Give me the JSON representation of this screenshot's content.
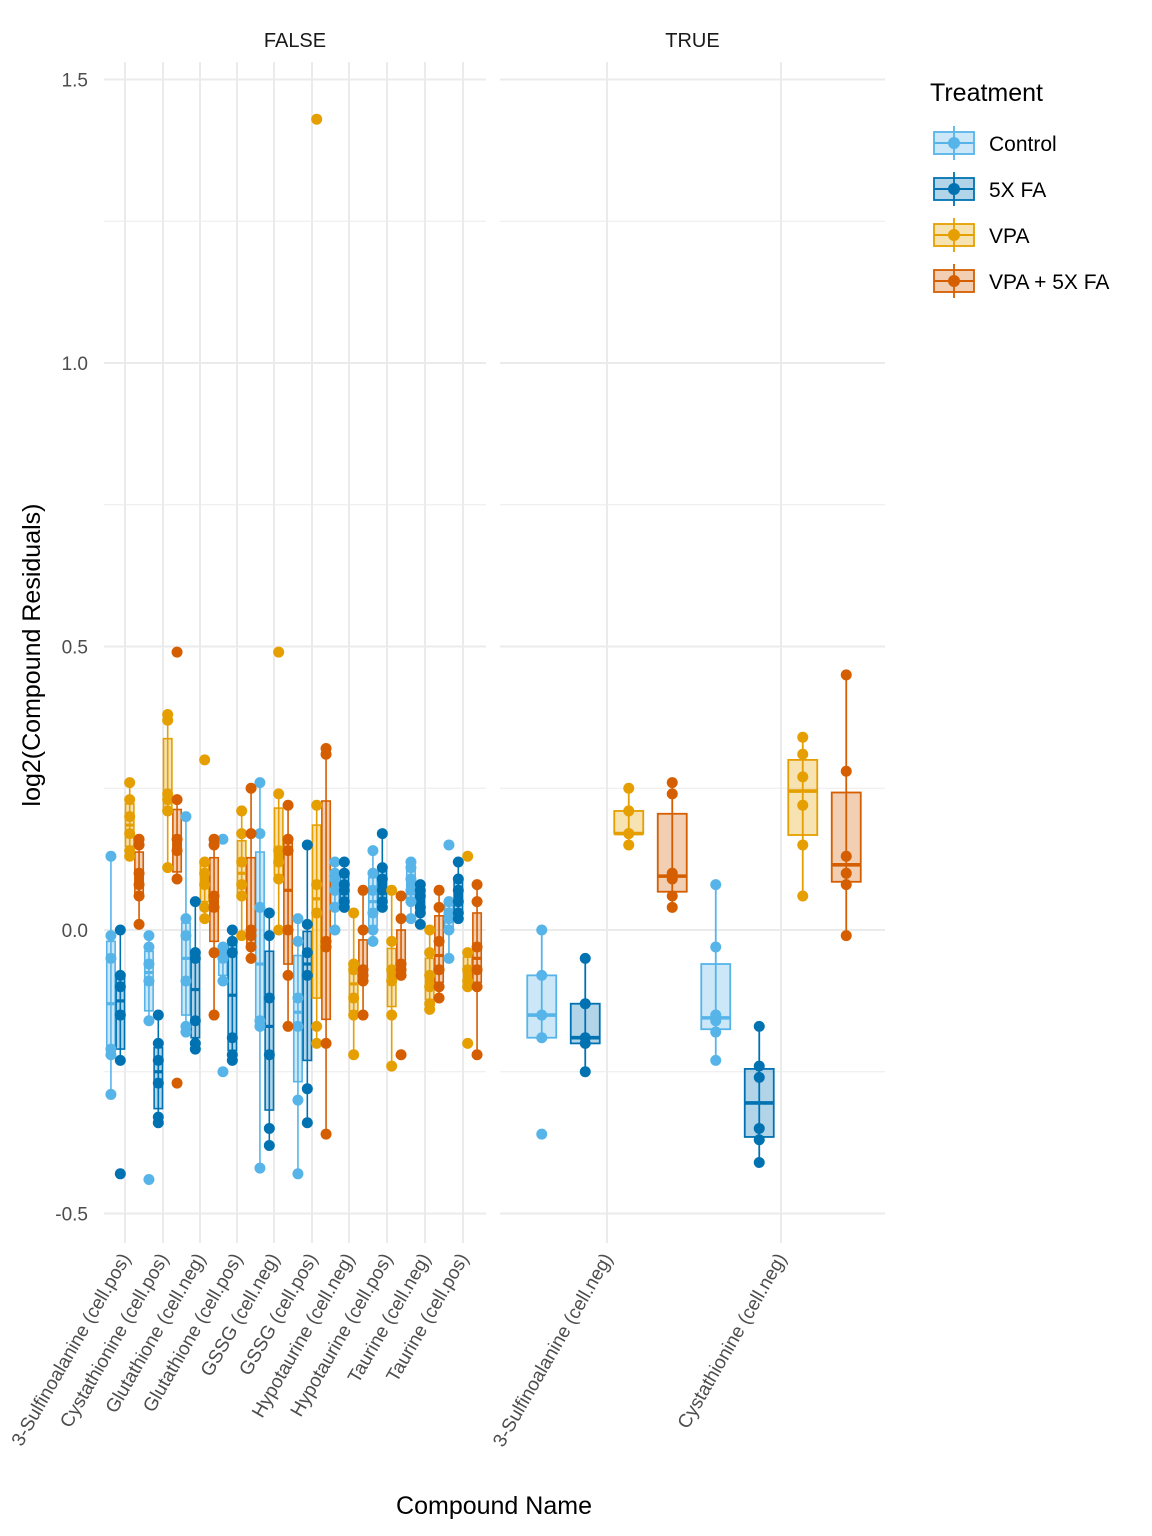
{
  "chart_data": {
    "type": "box",
    "xlabel": "Compound Name",
    "ylabel": "log2(Compound Residuals)",
    "ylim": [
      -0.55,
      1.57
    ],
    "yticks": [
      -0.5,
      0.0,
      0.5,
      1.0,
      1.5
    ],
    "ytick_labels": [
      "-0.5",
      "0.0",
      "0.5",
      "1.0",
      "1.5"
    ],
    "grid": true,
    "legend": {
      "title": "Treatment",
      "position": "right",
      "entries": [
        "Control",
        "5X FA",
        "VPA",
        "VPA + 5X FA"
      ]
    },
    "colors": {
      "Control": "#56B4E9",
      "5X FA": "#0072B2",
      "VPA": "#E69F00",
      "VPA + 5X FA": "#D55E00"
    },
    "panels": [
      {
        "strip": "FALSE",
        "categories": [
          "3-Sulfinoalanine (cell.pos)",
          "Cystathionine (cell.pos)",
          "Glutathione (cell.neg)",
          "Glutathione (cell.pos)",
          "GSSG (cell.neg)",
          "GSSG (cell.pos)",
          "Hypotaurine (cell.neg)",
          "Hypotaurine (cell.pos)",
          "Taurine (cell.neg)",
          "Taurine (cell.pos)"
        ],
        "series": [
          {
            "name": "Control",
            "points": [
              [
                0.13,
                -0.01,
                -0.05,
                -0.21,
                -0.22,
                -0.29
              ],
              [
                -0.01,
                -0.03,
                -0.06,
                -0.09,
                -0.16,
                -0.44
              ],
              [
                0.2,
                0.02,
                -0.01,
                -0.09,
                -0.17,
                -0.18
              ],
              [
                0.16,
                -0.03,
                -0.04,
                -0.05,
                -0.09,
                -0.25
              ],
              [
                0.26,
                0.17,
                0.04,
                -0.16,
                -0.17,
                -0.42
              ],
              [
                0.02,
                -0.02,
                -0.12,
                -0.17,
                -0.3,
                -0.43
              ],
              [
                0.12,
                0.1,
                0.09,
                0.07,
                0.04,
                0.0
              ],
              [
                0.14,
                0.1,
                0.07,
                0.03,
                0.0,
                -0.02
              ],
              [
                0.12,
                0.11,
                0.09,
                0.07,
                0.05,
                0.02
              ],
              [
                0.15,
                0.05,
                0.03,
                0.02,
                0.0,
                -0.05
              ]
            ]
          },
          {
            "name": "5X FA",
            "points": [
              [
                0.0,
                -0.08,
                -0.1,
                -0.15,
                -0.23,
                -0.43
              ],
              [
                -0.15,
                -0.2,
                -0.23,
                -0.27,
                -0.33,
                -0.34
              ],
              [
                0.05,
                -0.04,
                -0.05,
                -0.16,
                -0.2,
                -0.21
              ],
              [
                0.0,
                -0.02,
                -0.04,
                -0.19,
                -0.22,
                -0.23
              ],
              [
                0.03,
                -0.01,
                -0.22,
                -0.35,
                -0.38,
                -0.12
              ],
              [
                0.15,
                0.01,
                -0.04,
                -0.08,
                -0.28,
                -0.34
              ],
              [
                0.12,
                0.1,
                0.08,
                0.07,
                0.05,
                0.04
              ],
              [
                0.17,
                0.11,
                0.09,
                0.07,
                0.05,
                0.04
              ],
              [
                0.08,
                0.07,
                0.06,
                0.04,
                0.03,
                0.01
              ],
              [
                0.12,
                0.09,
                0.07,
                0.05,
                0.03,
                0.02
              ]
            ]
          },
          {
            "name": "VPA",
            "points": [
              [
                0.26,
                0.23,
                0.2,
                0.17,
                0.14,
                0.13
              ],
              [
                0.38,
                0.37,
                0.24,
                0.23,
                0.21,
                0.11
              ],
              [
                0.3,
                0.12,
                0.1,
                0.08,
                0.04,
                0.02
              ],
              [
                0.21,
                0.17,
                0.12,
                0.08,
                0.06,
                -0.01
              ],
              [
                0.49,
                0.24,
                0.14,
                0.12,
                0.09,
                0.0
              ],
              [
                1.43,
                0.22,
                0.08,
                0.03,
                -0.17,
                -0.2
              ],
              [
                0.03,
                -0.06,
                -0.07,
                -0.12,
                -0.15,
                -0.22
              ],
              [
                0.07,
                -0.02,
                -0.07,
                -0.09,
                -0.15,
                -0.24
              ],
              [
                0.0,
                -0.04,
                -0.08,
                -0.1,
                -0.13,
                -0.14
              ],
              [
                0.13,
                -0.04,
                -0.07,
                -0.09,
                -0.1,
                -0.2
              ]
            ]
          },
          {
            "name": "VPA + 5X FA",
            "points": [
              [
                0.16,
                0.15,
                0.1,
                0.08,
                0.06,
                0.01
              ],
              [
                0.49,
                0.23,
                0.16,
                0.14,
                0.09,
                -0.27
              ],
              [
                0.16,
                0.15,
                0.06,
                0.04,
                -0.04,
                -0.15
              ],
              [
                0.25,
                0.17,
                0.0,
                -0.01,
                -0.03,
                -0.05
              ],
              [
                0.22,
                0.16,
                0.14,
                0.0,
                -0.08,
                -0.17
              ],
              [
                0.32,
                0.31,
                -0.02,
                -0.03,
                -0.2,
                -0.36
              ],
              [
                0.07,
                0.0,
                -0.07,
                -0.08,
                -0.09,
                -0.15
              ],
              [
                0.06,
                0.02,
                -0.06,
                -0.07,
                -0.08,
                -0.22
              ],
              [
                0.07,
                0.04,
                -0.02,
                -0.07,
                -0.1,
                -0.12
              ],
              [
                0.08,
                0.05,
                -0.03,
                -0.07,
                -0.1,
                -0.22
              ]
            ]
          }
        ]
      },
      {
        "strip": "TRUE",
        "categories": [
          "3-Sulfinoalanine (cell.neg)",
          "Cystathionine (cell.neg)"
        ],
        "series": [
          {
            "name": "Control",
            "points": [
              [
                0.0,
                -0.08,
                -0.15,
                -0.19,
                -0.36
              ],
              [
                0.08,
                -0.03,
                -0.15,
                -0.16,
                -0.18,
                -0.23
              ]
            ]
          },
          {
            "name": "5X FA",
            "points": [
              [
                -0.05,
                -0.13,
                -0.19,
                -0.2,
                -0.25
              ],
              [
                -0.17,
                -0.24,
                -0.26,
                -0.35,
                -0.37,
                -0.41
              ]
            ]
          },
          {
            "name": "VPA",
            "points": [
              [
                0.25,
                0.21,
                0.17,
                0.17,
                0.15
              ],
              [
                0.34,
                0.31,
                0.27,
                0.22,
                0.15,
                0.06
              ]
            ]
          },
          {
            "name": "VPA + 5X FA",
            "points": [
              [
                0.26,
                0.24,
                0.1,
                0.09,
                0.06,
                0.04
              ],
              [
                0.45,
                0.28,
                0.13,
                0.1,
                0.08,
                -0.01
              ]
            ]
          }
        ]
      }
    ]
  }
}
